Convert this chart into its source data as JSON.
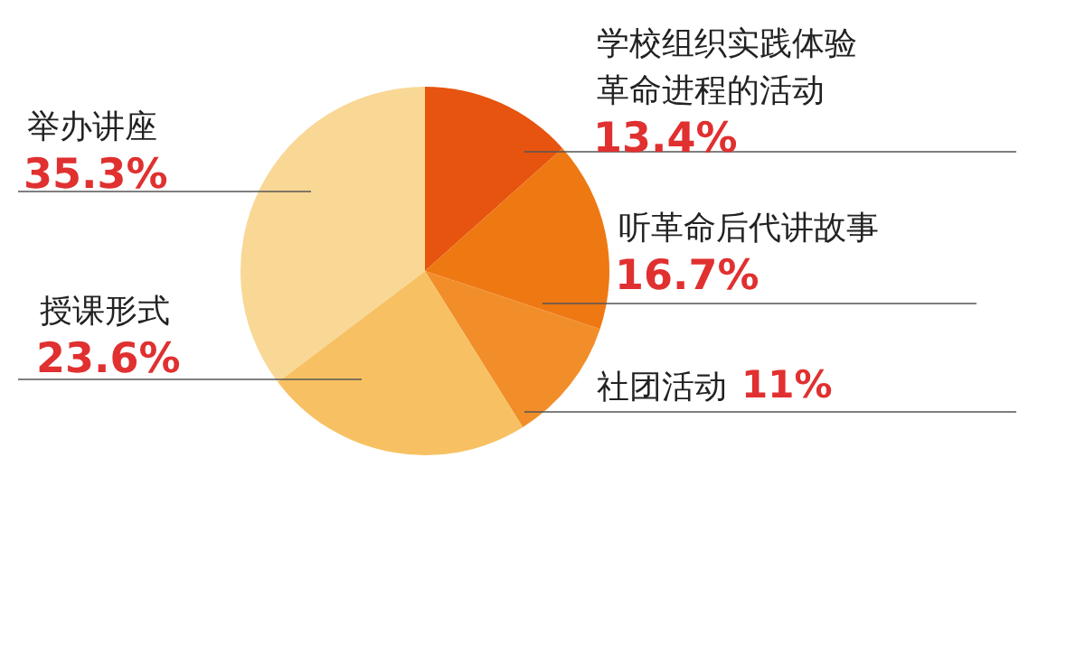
{
  "chart_data": {
    "type": "pie",
    "categories": [
      "学校组织实践体验革命进程的活动",
      "听革命后代讲故事",
      "社团活动",
      "授课形式",
      "举办讲座"
    ],
    "values": [
      13.4,
      16.7,
      11,
      23.6,
      35.3
    ],
    "colors": [
      "#e6540f",
      "#ee7812",
      "#f28e2a",
      "#f7c163",
      "#f9d795"
    ],
    "value_labels": [
      "13.4%",
      "16.7%",
      "11%",
      "23.6%",
      "35.3%"
    ]
  }
}
